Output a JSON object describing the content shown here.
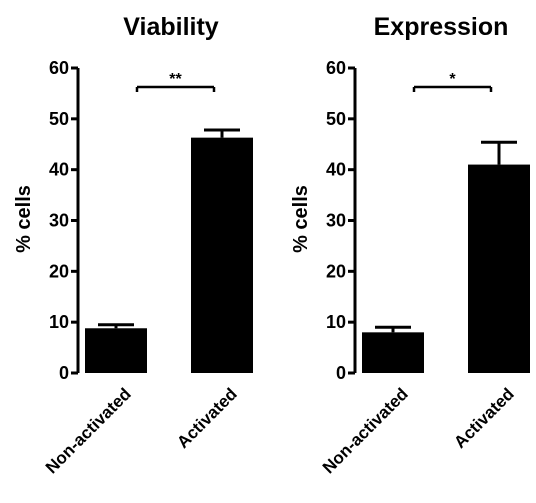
{
  "chart_data": [
    {
      "type": "bar",
      "title": "Viability",
      "ylabel": "% cells",
      "categories": [
        "Non-activated",
        "Activated"
      ],
      "values": [
        8.8,
        46.3
      ],
      "error": [
        0.7,
        1.5
      ],
      "ylim": [
        0,
        60
      ],
      "yticks": [
        0,
        10,
        20,
        30,
        40,
        50,
        60
      ],
      "significance": "**",
      "bar_color": "#000000"
    },
    {
      "type": "bar",
      "title": "Expression",
      "ylabel": "% cells",
      "categories": [
        "Non-activated",
        "Activated"
      ],
      "values": [
        8.0,
        41.0
      ],
      "error": [
        1.0,
        4.4
      ],
      "ylim": [
        0,
        60
      ],
      "yticks": [
        0,
        10,
        20,
        30,
        40,
        50,
        60
      ],
      "significance": "*",
      "bar_color": "#000000"
    }
  ]
}
